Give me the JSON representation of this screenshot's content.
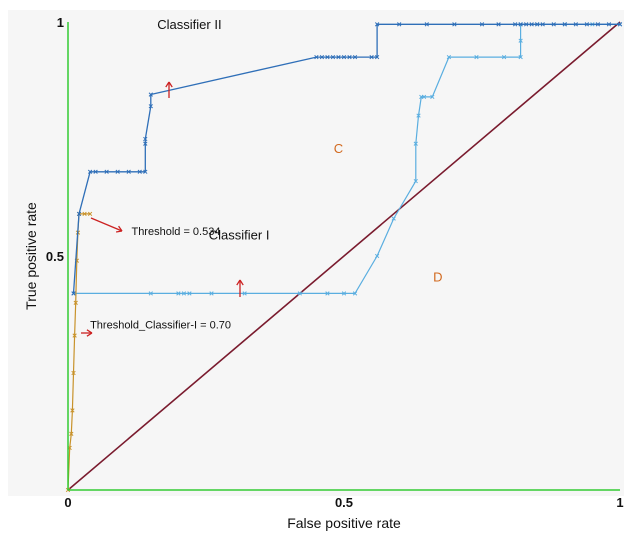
{
  "chart_data": {
    "type": "line",
    "title": "",
    "xlabel": "False positive rate",
    "ylabel": "True positive rate",
    "xlim": [
      0,
      1
    ],
    "ylim": [
      0,
      1
    ],
    "x_ticks": [
      {
        "value": 0,
        "label": "0"
      },
      {
        "value": 0.5,
        "label": "0.5"
      },
      {
        "value": 1,
        "label": "1"
      }
    ],
    "y_ticks": [
      {
        "value": 0.5,
        "label": "0.5"
      },
      {
        "value": 1,
        "label": "1"
      }
    ],
    "grid": false,
    "colors": {
      "background": "#f6f6f6",
      "axes": "#33cc33",
      "classifier_ii": "#2f6fb8",
      "classifier_i": "#5aaee0",
      "threshold_curve": "#c8922a",
      "diagonal": "#7a1b2e",
      "arrow": "#cc2222",
      "region_label": "#d2691e"
    },
    "series": [
      {
        "key": "classifier_ii",
        "x": [
          0.01,
          0.02,
          0.04,
          0.05,
          0.07,
          0.09,
          0.11,
          0.13,
          0.14,
          0.14,
          0.14,
          0.15,
          0.15,
          0.45,
          0.46,
          0.47,
          0.48,
          0.49,
          0.5,
          0.51,
          0.52,
          0.55,
          0.56,
          0.56,
          0.6,
          0.65,
          0.7,
          0.75,
          0.78,
          0.81,
          0.82,
          0.83,
          0.84,
          0.85,
          0.86,
          0.88,
          0.9,
          0.92,
          0.94,
          0.96,
          0.98,
          1.0
        ],
        "y": [
          0.42,
          0.59,
          0.68,
          0.68,
          0.68,
          0.68,
          0.68,
          0.68,
          0.68,
          0.74,
          0.75,
          0.82,
          0.845,
          0.925,
          0.925,
          0.925,
          0.925,
          0.925,
          0.925,
          0.925,
          0.925,
          0.925,
          0.925,
          0.995,
          0.995,
          0.995,
          0.995,
          0.995,
          0.995,
          0.995,
          0.995,
          0.995,
          0.995,
          0.995,
          0.995,
          0.995,
          0.995,
          0.995,
          0.995,
          0.995,
          0.995,
          0.995
        ]
      },
      {
        "key": "classifier_i",
        "x": [
          0.01,
          0.15,
          0.2,
          0.21,
          0.22,
          0.26,
          0.32,
          0.42,
          0.47,
          0.5,
          0.52,
          0.56,
          0.59,
          0.63,
          0.63,
          0.635,
          0.64,
          0.645,
          0.66,
          0.69,
          0.74,
          0.79,
          0.82,
          0.82,
          0.82,
          0.85,
          0.9,
          0.95,
          1.0
        ],
        "y": [
          0.42,
          0.42,
          0.42,
          0.42,
          0.42,
          0.42,
          0.42,
          0.42,
          0.42,
          0.42,
          0.42,
          0.5,
          0.58,
          0.66,
          0.74,
          0.8,
          0.84,
          0.84,
          0.84,
          0.925,
          0.925,
          0.925,
          0.925,
          0.96,
          0.995,
          0.995,
          0.995,
          0.995,
          0.995
        ]
      },
      {
        "key": "threshold_curve",
        "x": [
          0,
          0.003,
          0.006,
          0.008,
          0.01,
          0.012,
          0.014,
          0.016,
          0.018,
          0.02,
          0.03,
          0.04
        ],
        "y": [
          0,
          0.09,
          0.12,
          0.17,
          0.25,
          0.33,
          0.4,
          0.49,
          0.55,
          0.59,
          0.59,
          0.59
        ]
      },
      {
        "key": "diagonal",
        "x": [
          0,
          1
        ],
        "y": [
          0,
          1
        ]
      }
    ],
    "annotations": [
      {
        "key": "classifier_ii_label",
        "text": "Classifier II",
        "x": 0.22,
        "y": 0.985
      },
      {
        "key": "classifier_i_label",
        "text": "Classifier I",
        "x": 0.31,
        "y": 0.535
      },
      {
        "key": "threshold_label",
        "text": "Threshold = 0.534",
        "x": 0.115,
        "y": 0.545
      },
      {
        "key": "threshold_ci_label",
        "text": "Threshold_Classifier-I = 0.70",
        "x": 0.04,
        "y": 0.345
      },
      {
        "key": "region_c",
        "text": "C",
        "x": 0.49,
        "y": 0.72
      },
      {
        "key": "region_d",
        "text": "D",
        "x": 0.67,
        "y": 0.445
      }
    ]
  }
}
